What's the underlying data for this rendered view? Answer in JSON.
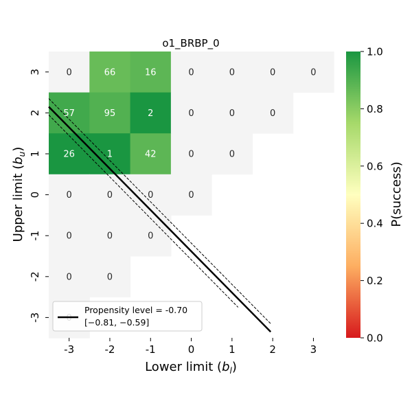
{
  "chart_data": {
    "type": "heatmap",
    "title": "o1_BRBP_0",
    "xlabel": "Lower limit (",
    "xlabel_var": "b",
    "xlabel_sub": "l",
    "ylabel": "Upper limit (",
    "ylabel_var": "b",
    "ylabel_sub": "u",
    "x_ticks": [
      "-3",
      "-2",
      "-1",
      "0",
      "1",
      "2",
      "3"
    ],
    "y_ticks": [
      "3",
      "2",
      "1",
      "0",
      "-1",
      "-2",
      "-3"
    ],
    "cells": [
      {
        "bl": -3,
        "bu": 3,
        "count": "0",
        "p": null
      },
      {
        "bl": -2,
        "bu": 3,
        "count": "66",
        "p": 0.86
      },
      {
        "bl": -1,
        "bu": 3,
        "count": "16",
        "p": 0.88
      },
      {
        "bl": 0,
        "bu": 3,
        "count": "0",
        "p": null
      },
      {
        "bl": 1,
        "bu": 3,
        "count": "0",
        "p": null
      },
      {
        "bl": 2,
        "bu": 3,
        "count": "0",
        "p": null
      },
      {
        "bl": 3,
        "bu": 3,
        "count": "0",
        "p": null
      },
      {
        "bl": -3,
        "bu": 2,
        "count": "57",
        "p": 0.93
      },
      {
        "bl": -2,
        "bu": 2,
        "count": "95",
        "p": 0.9
      },
      {
        "bl": -1,
        "bu": 2,
        "count": "2",
        "p": 1.0
      },
      {
        "bl": 0,
        "bu": 2,
        "count": "0",
        "p": null
      },
      {
        "bl": 1,
        "bu": 2,
        "count": "0",
        "p": null
      },
      {
        "bl": 2,
        "bu": 2,
        "count": "0",
        "p": null
      },
      {
        "bl": -3,
        "bu": 1,
        "count": "26",
        "p": 1.0
      },
      {
        "bl": -2,
        "bu": 1,
        "count": "1",
        "p": 1.0
      },
      {
        "bl": -1,
        "bu": 1,
        "count": "42",
        "p": 0.88
      },
      {
        "bl": 0,
        "bu": 1,
        "count": "0",
        "p": null
      },
      {
        "bl": 1,
        "bu": 1,
        "count": "0",
        "p": null
      },
      {
        "bl": -3,
        "bu": 0,
        "count": "0",
        "p": null
      },
      {
        "bl": -2,
        "bu": 0,
        "count": "0",
        "p": null
      },
      {
        "bl": -1,
        "bu": 0,
        "count": "0",
        "p": null
      },
      {
        "bl": 0,
        "bu": 0,
        "count": "0",
        "p": null
      },
      {
        "bl": -3,
        "bu": -1,
        "count": "0",
        "p": null
      },
      {
        "bl": -2,
        "bu": -1,
        "count": "0",
        "p": null
      },
      {
        "bl": -1,
        "bu": -1,
        "count": "0",
        "p": null
      },
      {
        "bl": -3,
        "bu": -2,
        "count": "0",
        "p": null
      },
      {
        "bl": -2,
        "bu": -2,
        "count": "0",
        "p": null
      },
      {
        "bl": -3,
        "bu": -3,
        "count": "0",
        "p": null
      }
    ],
    "propensity_line": {
      "x_start": -3.5,
      "y_start": 2.15,
      "x_end": 1.95,
      "y_end": -3.35
    },
    "ci_upper_line": {
      "x_start": -3.5,
      "y_start": 2.35,
      "x_end": 1.95,
      "y_end": -3.15
    },
    "ci_lower_line": {
      "x_start": -3.5,
      "y_start": 1.95,
      "x_end": 1.15,
      "y_end": -2.75
    },
    "legend": {
      "label": "Propensity level = -0.70",
      "interval": "[−0.81, −0.59]",
      "position": "lower-left"
    },
    "colorbar": {
      "label": "P(success)",
      "ticks": [
        "0.0",
        "0.2",
        "0.4",
        "0.6",
        "0.8",
        "1.0"
      ],
      "range": [
        0,
        1
      ],
      "colors": [
        "#d7191c",
        "#fdae61",
        "#ffffbf",
        "#a6d96a",
        "#1a9641"
      ]
    },
    "empty_color": "#f4f4f4",
    "line_color": "#000000"
  }
}
